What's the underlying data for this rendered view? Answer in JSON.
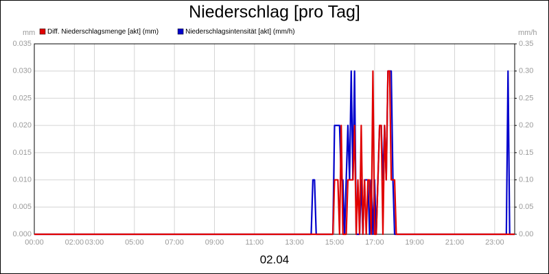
{
  "chart_data": {
    "type": "line",
    "title": "Niederschlag [pro Tag]",
    "xlabel": "02.04",
    "y_unit": "mm",
    "y2_unit": "mm/h",
    "grid": true,
    "xlim": [
      0,
      24
    ],
    "xticks": [
      {
        "value": 0,
        "label": "00:00"
      },
      {
        "value": 2,
        "label": "02:00"
      },
      {
        "value": 3,
        "label": "03:00"
      },
      {
        "value": 5,
        "label": "05:00"
      },
      {
        "value": 7,
        "label": "07:00"
      },
      {
        "value": 9,
        "label": "09:00"
      },
      {
        "value": 11,
        "label": "11:00"
      },
      {
        "value": 13,
        "label": "13:00"
      },
      {
        "value": 15,
        "label": "15:00"
      },
      {
        "value": 17,
        "label": "17:00"
      },
      {
        "value": 19,
        "label": "19:00"
      },
      {
        "value": 21,
        "label": "21:00"
      },
      {
        "value": 23,
        "label": "23:00"
      }
    ],
    "ylim": [
      0,
      0.035
    ],
    "yticks": [
      {
        "value": 0,
        "label": "0.000"
      },
      {
        "value": 0.005,
        "label": "0.005"
      },
      {
        "value": 0.01,
        "label": "0.010"
      },
      {
        "value": 0.015,
        "label": "0.015"
      },
      {
        "value": 0.02,
        "label": "0.020"
      },
      {
        "value": 0.025,
        "label": "0.025"
      },
      {
        "value": 0.03,
        "label": "0.030"
      },
      {
        "value": 0.035,
        "label": "0.035"
      }
    ],
    "y2lim": [
      0,
      0.35
    ],
    "y2ticks": [
      {
        "value": 0,
        "label": "0.00"
      },
      {
        "value": 0.05,
        "label": "0.05"
      },
      {
        "value": 0.1,
        "label": "0.10"
      },
      {
        "value": 0.15,
        "label": "0.15"
      },
      {
        "value": 0.2,
        "label": "0.20"
      },
      {
        "value": 0.25,
        "label": "0.25"
      },
      {
        "value": 0.3,
        "label": "0.30"
      },
      {
        "value": 0.35,
        "label": "0.35"
      }
    ],
    "x": [
      0,
      13.833,
      13.917,
      14.0,
      14.083,
      14.917,
      15.0,
      15.083,
      15.167,
      15.25,
      15.333,
      15.417,
      15.5,
      15.583,
      15.667,
      15.75,
      15.833,
      15.917,
      16.0,
      16.083,
      16.167,
      16.25,
      16.333,
      16.417,
      16.5,
      16.583,
      16.667,
      16.75,
      16.833,
      16.917,
      17.0,
      17.083,
      17.167,
      17.25,
      17.333,
      17.417,
      17.5,
      17.583,
      17.667,
      17.75,
      17.833,
      17.917,
      18.0,
      18.083,
      18.167,
      23.5,
      23.583,
      23.667,
      23.75,
      24
    ],
    "series": [
      {
        "name": "Diff. Niederschlagsmenge [akt] (mm)",
        "color": "#e00000",
        "axis": "y",
        "values": [
          0,
          0,
          0,
          0,
          0,
          0,
          0.01,
          0.01,
          0.01,
          0,
          0.02,
          0,
          0,
          0,
          0.01,
          0.01,
          0.01,
          0.01,
          0.02,
          0,
          0.01,
          0,
          0.02,
          0,
          0.01,
          0,
          0.01,
          0.01,
          0,
          0.03,
          0,
          0,
          0.01,
          0.02,
          0.02,
          0,
          0.02,
          0.01,
          0.03,
          0.03,
          0.01,
          0.01,
          0.01,
          0,
          0,
          0,
          0,
          0,
          0,
          0
        ]
      },
      {
        "name": "Niederschlagsintensität [akt] (mm/h)",
        "color": "#0000cc",
        "axis": "y2",
        "values": [
          0,
          0,
          0.1,
          0.1,
          0,
          0,
          0.2,
          0.2,
          0.2,
          0.2,
          0.1,
          0.1,
          0,
          0.1,
          0.2,
          0.1,
          0.3,
          0.1,
          0.3,
          0,
          0,
          0,
          0.1,
          0,
          0.1,
          0.1,
          0.1,
          0,
          0.1,
          0,
          0.1,
          0,
          0.1,
          0.2,
          0.2,
          0.1,
          0.2,
          0.1,
          0.3,
          0.3,
          0.3,
          0.1,
          0,
          0,
          0,
          0,
          0,
          0.3,
          0,
          0
        ]
      }
    ]
  }
}
